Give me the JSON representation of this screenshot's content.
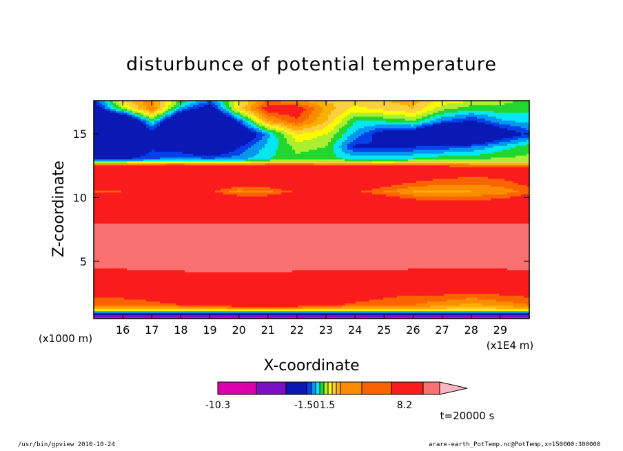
{
  "chart_data": {
    "type": "heatmap",
    "title": "disturbunce of potential temperature",
    "xlabel": "X-coordinate",
    "ylabel": "Z-coordinate",
    "x_unit": "(x1E4 m)",
    "y_unit": "(x1000 m)",
    "xlim": [
      15,
      30
    ],
    "ylim": [
      0.5,
      17.6
    ],
    "x_ticks": [
      "16",
      "17",
      "18",
      "19",
      "20",
      "21",
      "22",
      "23",
      "24",
      "25",
      "26",
      "27",
      "28",
      "29"
    ],
    "y_ticks": [
      "5",
      "10",
      "15"
    ],
    "colorbar": {
      "colors": [
        "#dd00aa",
        "#7a10c4",
        "#0a18b4",
        "#0640e8",
        "#0696f0",
        "#06e6f0",
        "#22d630",
        "#aaf030",
        "#fafa00",
        "#fad040",
        "#fab000",
        "#fa8c00",
        "#fa6400",
        "#fa1c1c",
        "#fa7070",
        "#ffb6c0"
      ],
      "labels": [
        "-10.3",
        "-1.50",
        "1.5",
        "8.2"
      ]
    },
    "layers": [
      {
        "z": 0.5,
        "values": [
          -9,
          -9,
          -9,
          -9,
          -9,
          -9,
          -9,
          -9,
          -9,
          -9,
          -9,
          -9,
          -9,
          -9,
          -9,
          -9
        ]
      },
      {
        "z": 0.9,
        "values": [
          -2,
          -2,
          -2,
          -2,
          -2,
          -2,
          -2,
          -2,
          -2,
          -2,
          -2,
          -2,
          -2,
          -2,
          -2,
          -2
        ]
      },
      {
        "z": 1.2,
        "values": [
          0.4,
          0.4,
          0.4,
          0.4,
          0.4,
          0.4,
          0.4,
          0.4,
          0.4,
          0.4,
          0.4,
          0.4,
          0.4,
          0.4,
          0.4,
          0.4
        ]
      },
      {
        "z": 1.6,
        "values": [
          1.3,
          1.3,
          1.3,
          1.5,
          1.6,
          2.0,
          2.2,
          1.9,
          1.6,
          1.4,
          1.3,
          1.2,
          1.0,
          0.8,
          1.0,
          1.2
        ]
      },
      {
        "z": 2.4,
        "values": [
          1.6,
          1.6,
          1.8,
          2.2,
          2.8,
          3.2,
          3.0,
          2.5,
          2.0,
          1.8,
          1.6,
          1.5,
          1.5,
          1.4,
          1.5,
          1.6
        ]
      },
      {
        "z": 3.2,
        "values": [
          2.2,
          2.2,
          2.4,
          3.0,
          3.4,
          3.4,
          3.3,
          3.0,
          2.8,
          2.6,
          2.4,
          2.2,
          2.2,
          2.1,
          2.2,
          2.3
        ]
      },
      {
        "z": 4.0,
        "values": [
          3.2,
          3.2,
          3.4,
          3.6,
          3.8,
          3.8,
          3.7,
          3.6,
          3.5,
          3.4,
          3.3,
          3.2,
          3.2,
          3.2,
          3.2,
          3.3
        ]
      },
      {
        "z": 5.0,
        "values": [
          5.2,
          5.2,
          5.2,
          5.2,
          5.2,
          5.2,
          5.2,
          5.2,
          5.2,
          5.2,
          5.2,
          5.2,
          5.2,
          5.2,
          5.2,
          5.2
        ]
      },
      {
        "z": 7.0,
        "values": [
          5.4,
          5.4,
          5.4,
          5.4,
          5.4,
          5.4,
          5.4,
          5.4,
          5.4,
          5.4,
          5.4,
          5.4,
          5.4,
          5.4,
          5.4,
          5.4
        ]
      },
      {
        "z": 8.3,
        "values": [
          3.6,
          3.6,
          3.6,
          3.6,
          3.6,
          3.6,
          3.6,
          3.6,
          3.6,
          3.6,
          3.6,
          3.6,
          3.6,
          3.6,
          3.6,
          3.6
        ]
      },
      {
        "z": 9.5,
        "values": [
          2.8,
          2.8,
          2.8,
          2.7,
          2.6,
          2.5,
          2.4,
          2.3,
          2.4,
          2.4,
          2.2,
          1.9,
          1.8,
          1.7,
          1.9,
          2.2
        ]
      },
      {
        "z": 10.5,
        "values": [
          1.4,
          1.5,
          1.7,
          1.8,
          1.6,
          1.0,
          1.1,
          1.6,
          1.8,
          1.6,
          1.2,
          0.9,
          0.8,
          0.9,
          1.0,
          1.3
        ]
      },
      {
        "z": 11.5,
        "values": [
          2.6,
          2.6,
          2.6,
          2.6,
          2.4,
          2.2,
          2.3,
          2.6,
          2.6,
          2.4,
          2.0,
          1.7,
          1.5,
          1.4,
          1.5,
          1.8
        ]
      },
      {
        "z": 12.3,
        "values": [
          3.4,
          3.4,
          3.4,
          3.3,
          3.1,
          3.0,
          2.9,
          2.8,
          2.7,
          2.6,
          2.5,
          2.4,
          2.2,
          2.0,
          1.9,
          1.8
        ]
      },
      {
        "z": 13.0,
        "values": [
          -1.6,
          -1.5,
          -1.2,
          -1.0,
          -1.1,
          -1.0,
          -0.6,
          -0.4,
          -0.5,
          -0.6,
          -0.7,
          -0.5,
          -0.3,
          -0.3,
          -0.2,
          -0.2
        ]
      },
      {
        "z": 14.0,
        "values": [
          -3.0,
          -2.6,
          -1.6,
          -1.9,
          -2.6,
          -1.5,
          -0.8,
          -0.2,
          -0.3,
          -1.6,
          -1.5,
          -1.5,
          -1.4,
          -1.2,
          -0.8,
          -0.4
        ]
      },
      {
        "z": 15.0,
        "values": [
          -4.0,
          -3.6,
          -1.8,
          -3.0,
          -4.0,
          -2.4,
          -1.0,
          0.3,
          0.0,
          -1.0,
          -1.8,
          -2.0,
          -3.2,
          -3.0,
          -2.0,
          -1.4
        ]
      },
      {
        "z": 16.0,
        "values": [
          -3.0,
          -3.2,
          -0.6,
          -3.0,
          -3.6,
          -1.4,
          0.8,
          1.4,
          0.6,
          -0.6,
          -0.6,
          -0.4,
          -1.2,
          -1.6,
          -1.0,
          -0.8
        ]
      },
      {
        "z": 17.0,
        "values": [
          -2.0,
          -0.2,
          1.2,
          -1.0,
          -2.0,
          0.4,
          1.8,
          1.8,
          0.8,
          0.2,
          0.4,
          0.6,
          -0.2,
          -0.5,
          -0.4,
          -0.5
        ]
      },
      {
        "z": 17.6,
        "values": [
          -1.6,
          0.4,
          1.1,
          -0.4,
          -1.2,
          0.2,
          1.2,
          1.0,
          0.6,
          0.4,
          0.6,
          0.7,
          0.2,
          0.0,
          -0.2,
          -0.4
        ]
      }
    ],
    "column_x": [
      15.0,
      16.0,
      17.0,
      18.0,
      19.0,
      20.0,
      21.0,
      22.0,
      23.0,
      24.0,
      25.0,
      26.0,
      27.0,
      28.0,
      29.0,
      30.0
    ],
    "levels": [
      -10.3,
      -7.0,
      -4.0,
      -1.5,
      -1.2,
      -0.9,
      -0.6,
      -0.3,
      0.0,
      0.3,
      0.6,
      0.9,
      1.2,
      1.5,
      4.0,
      6.5,
      8.2
    ],
    "annotation": "t=20000 s"
  },
  "footer": {
    "left": "/usr/bin/gpview  2010-10-24",
    "right": "arare-earth_PotTemp.nc@PotTemp,x=150000:300000"
  }
}
